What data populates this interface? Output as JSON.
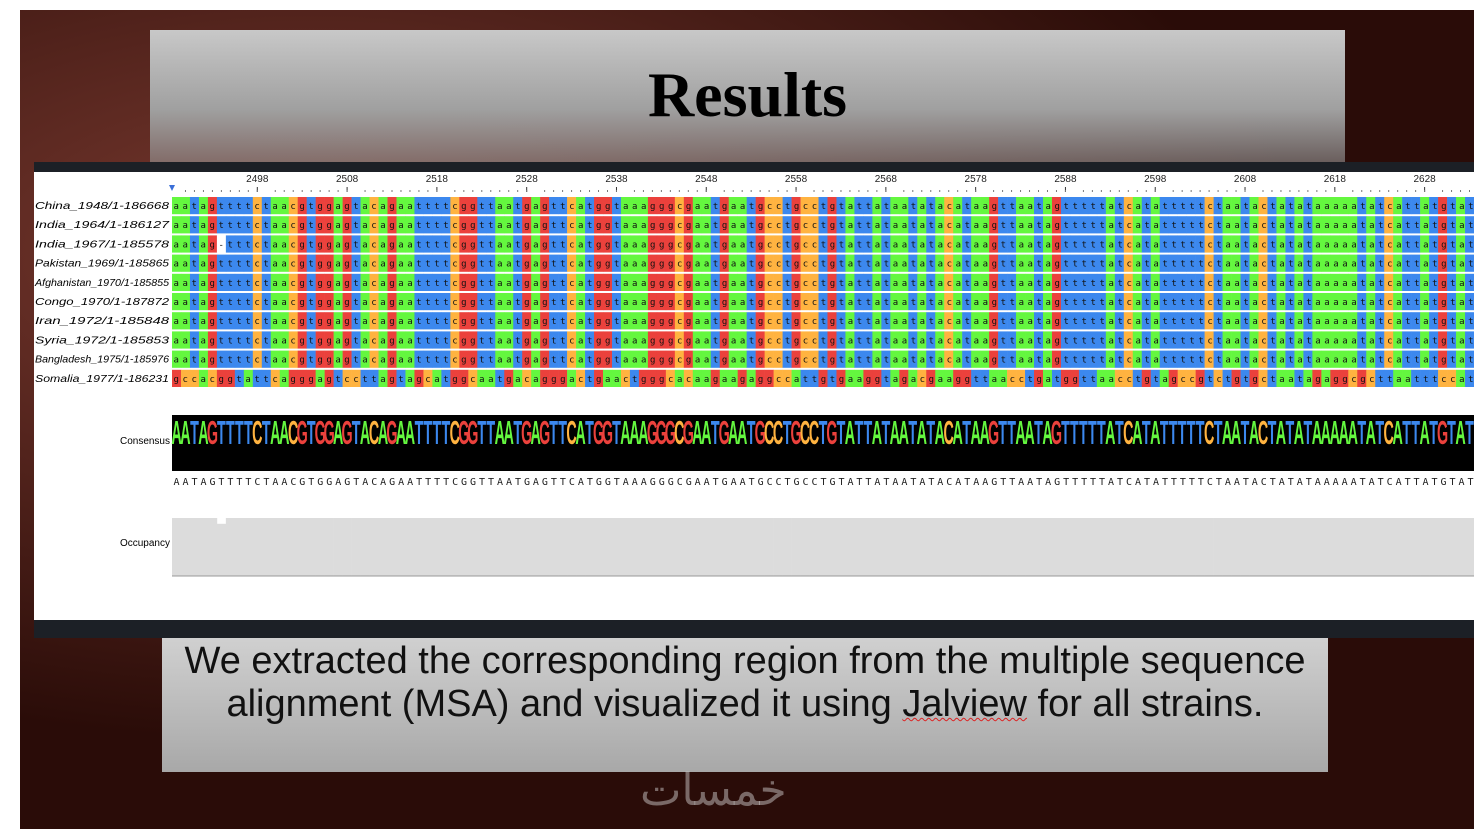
{
  "title": "Results",
  "alignment": {
    "ruler": [
      2498,
      2508,
      2518,
      2528,
      2538,
      2548,
      2558,
      2568,
      2578,
      2588,
      2598,
      2608,
      2618,
      2628
    ],
    "names": [
      "China_1948/1-186668",
      "India_1964/1-186127",
      "India_1967/1-185578",
      "Pakistan_1969/1-185865",
      "Afghanistan_1970/1-185855",
      "Congo_1970/1-187872",
      "Iran_1972/1-185848",
      "Syria_1972/1-185853",
      "Bangladesh_1975/1-185976",
      "Somalia_1977/1-186231"
    ],
    "sequences": [
      "aatagttttctaacgtggagtacagaattttcggttaatgagttcatggtaaagggcgaatgaatgcctgcctgtattataatatacataagttaatagtttttatcatatttttctaatactatataaaaatatcattatgtat",
      "aatagttttctaacgtggagtacagaattttcggttaatgagttcatggtaaagggcgaatgaatgcctgcctgtattataatatacataagttaatagtttttatcatatttttctaatactatataaaaatatcattatgtat",
      "aatag-tttctaacgtggagtacagaattttcggttaatgagttcatggtaaagggcgaatgaatgcctgcctgtattataatatacataagttaatagtttttatcatatttttctaatactatataaaaatatcattatgtat",
      "aatagttttctaacgtggagtacagaattttcggttaatgagttcatggtaaagggcgaatgaatgcctgcctgtattataatatacataagttaatagtttttatcatatttttctaatactatataaaaatatcattatgtat",
      "aatagttttctaacgtggagtacagaattttcggttaatgagttcatggtaaagggcgaatgaatgcctgcctgtattataatatacataagttaatagtttttatcatatttttctaatactatataaaaatatcattatgtat",
      "aatagttttctaacgtggagtacagaattttcggttaatgagttcatggtaaagggcgaatgaatgcctgcctgtattataatatacataagttaatagtttttatcatatttttctaatactatataaaaatatcattatgtat",
      "aatagttttctaacgtggagtacagaattttcggttaatgagttcatggtaaagggcgaatgaatgcctgcctgtattataatatacataagttaatagtttttatcatatttttctaatactatataaaaatatcattatgtat",
      "aatagttttctaacgtggagtacagaattttcggttaatgagttcatggtaaagggcgaatgaatgcctgcctgtattataatatacataagttaatagtttttatcatatttttctaatactatataaaaatatcattatgtat",
      "aatagttttctaacgtggagtacagaattttcggttaatgagttcatggtaaagggcgaatgaatgcctgcctgtattataatatacataagttaatagtttttatcatatttttctaatactatataaaaatatcattatgtat",
      "gccacggtattcagggagtccttagtagcatggcaatgacagggactgaactgggcacaagaagaggccattgtgaaggtagacgaaggttaacctgatggttaacctgtagccgtctgtgctaatagaggcgcttaatttccat"
    ],
    "consensus": {
      "label": "Consensus",
      "seq": "AATAGTTTTCTAACGTGGAGTACAGAATTTTCGGTTAATGAGTTCATGGTAAAGGGCGAATGAATGCCTGCCTGTATTATAATATACATAAGTTAATAGTTTTTATCATATTTTTCTAATACTATATAAAAATATCATTATGTAT"
    },
    "occupancy": "Occupancy"
  },
  "caption": {
    "before": "We extracted the corresponding region from the multiple sequence alignment (MSA) and visualized it using ",
    "underlined": "Jalview",
    "after": " for all strains."
  },
  "watermark": "خمسات"
}
